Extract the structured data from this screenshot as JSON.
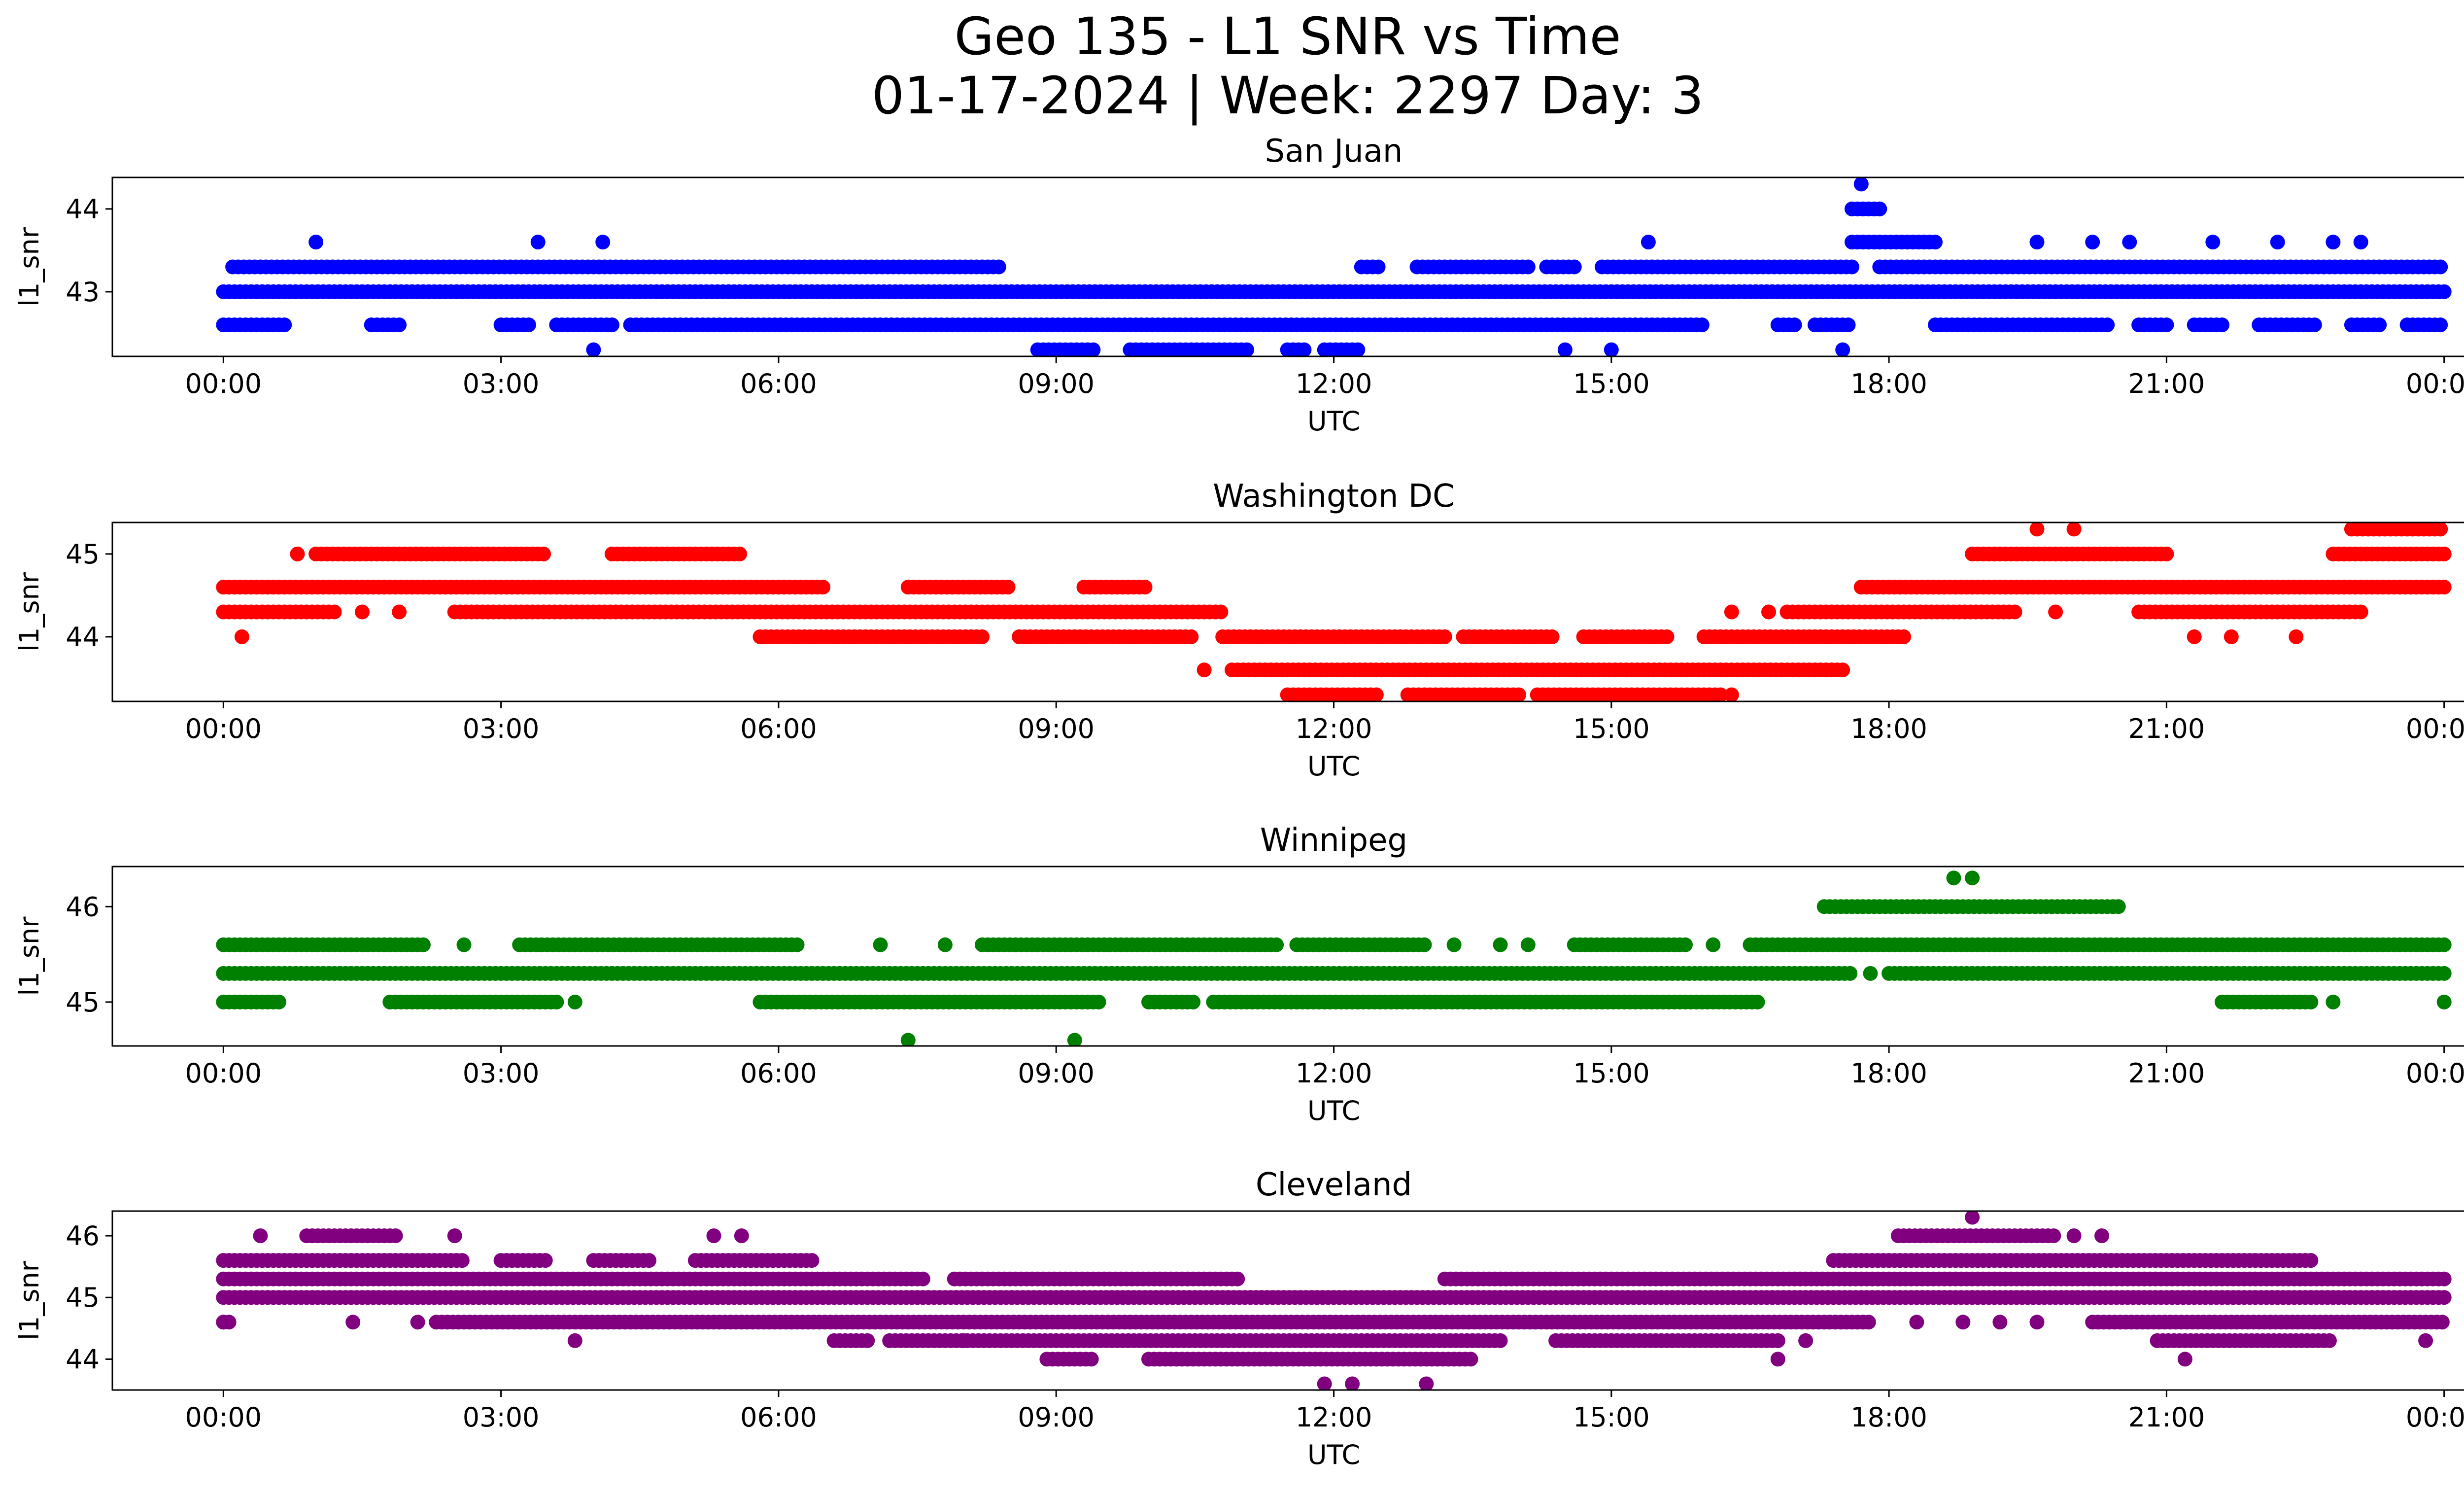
{
  "figure": {
    "title_line1": "Geo 135 - L1 SNR vs Time",
    "title_line2": "01-17-2024 | Week: 2297 Day: 3"
  },
  "chart_data": [
    {
      "type": "scatter",
      "title": "San Juan",
      "xlabel": "UTC",
      "ylabel": "l1_snr",
      "color": "#0000ff",
      "x_ticks": [
        "00:00",
        "03:00",
        "06:00",
        "09:00",
        "12:00",
        "15:00",
        "18:00",
        "21:00",
        "00:00"
      ],
      "x_unit": "hours UTC",
      "xlim": [
        -1.2,
        25.2
      ],
      "ylim": [
        42.22,
        44.38
      ],
      "y_ticks": [
        43,
        44
      ],
      "series": [
        {
          "y": 43.0,
          "ranges": [
            [
              0,
              24
            ]
          ]
        },
        {
          "y": 42.6,
          "ranges": [
            [
              0,
              0.7
            ],
            [
              1.6,
              1.9
            ],
            [
              3.0,
              3.3
            ],
            [
              3.6,
              4.2
            ],
            [
              4.4,
              16.0
            ],
            [
              16.8,
              17.0
            ],
            [
              17.2,
              17.6
            ],
            [
              18.5,
              20.4
            ],
            [
              20.7,
              21.0
            ],
            [
              21.3,
              21.6
            ],
            [
              22.0,
              22.6
            ],
            [
              23.0,
              23.3
            ],
            [
              23.6,
              24.0
            ]
          ]
        },
        {
          "y": 43.3,
          "ranges": [
            [
              0.1,
              8.4
            ],
            [
              12.3,
              12.5
            ],
            [
              12.9,
              14.1
            ],
            [
              14.3,
              14.6
            ],
            [
              14.9,
              17.6
            ],
            [
              17.9,
              24.0
            ]
          ]
        },
        {
          "y": 43.6,
          "ranges": [
            [
              17.6,
              18.5
            ]
          ]
        },
        {
          "y": 44.0,
          "ranges": [
            [
              17.6,
              17.9
            ]
          ]
        },
        {
          "y": 42.3,
          "ranges": [
            [
              8.8,
              9.4
            ],
            [
              9.8,
              11.1
            ],
            [
              11.5,
              11.7
            ],
            [
              11.9,
              12.3
            ]
          ]
        }
      ],
      "points": [
        {
          "x": 1.0,
          "y": 43.6
        },
        {
          "x": 3.4,
          "y": 43.6
        },
        {
          "x": 4.1,
          "y": 43.6
        },
        {
          "x": 4.0,
          "y": 42.3
        },
        {
          "x": 15.4,
          "y": 43.6
        },
        {
          "x": 14.5,
          "y": 42.3
        },
        {
          "x": 15.0,
          "y": 42.3
        },
        {
          "x": 17.5,
          "y": 42.3
        },
        {
          "x": 17.7,
          "y": 44.3
        },
        {
          "x": 19.6,
          "y": 43.6
        },
        {
          "x": 20.2,
          "y": 43.6
        },
        {
          "x": 20.6,
          "y": 43.6
        },
        {
          "x": 21.5,
          "y": 43.6
        },
        {
          "x": 22.2,
          "y": 43.6
        },
        {
          "x": 22.8,
          "y": 43.6
        },
        {
          "x": 23.1,
          "y": 43.6
        }
      ]
    },
    {
      "type": "scatter",
      "title": "Washington DC",
      "xlabel": "UTC",
      "ylabel": "l1_snr",
      "color": "#ff0000",
      "x_ticks": [
        "00:00",
        "03:00",
        "06:00",
        "09:00",
        "12:00",
        "15:00",
        "18:00",
        "21:00",
        "00:00"
      ],
      "x_unit": "hours UTC",
      "xlim": [
        -1.2,
        25.2
      ],
      "ylim": [
        43.22,
        45.38
      ],
      "y_ticks": [
        44,
        45
      ],
      "series": [
        {
          "y": 44.6,
          "ranges": [
            [
              0,
              6.5
            ],
            [
              7.4,
              8.5
            ],
            [
              9.3,
              10.0
            ],
            [
              17.7,
              24.0
            ]
          ]
        },
        {
          "y": 44.3,
          "ranges": [
            [
              0,
              1.2
            ],
            [
              2.5,
              10.8
            ],
            [
              16.9,
              19.4
            ],
            [
              20.7,
              23.1
            ]
          ]
        },
        {
          "y": 44.0,
          "ranges": [
            [
              5.8,
              8.2
            ],
            [
              8.6,
              10.5
            ],
            [
              10.8,
              13.2
            ],
            [
              13.4,
              14.4
            ],
            [
              14.7,
              15.6
            ],
            [
              16.0,
              18.2
            ]
          ]
        },
        {
          "y": 43.6,
          "ranges": [
            [
              10.9,
              17.5
            ]
          ]
        },
        {
          "y": 45.0,
          "ranges": [
            [
              1.0,
              3.5
            ],
            [
              4.2,
              5.6
            ],
            [
              18.9,
              21.0
            ],
            [
              22.8,
              24.0
            ]
          ]
        },
        {
          "y": 43.3,
          "ranges": [
            [
              11.5,
              12.5
            ],
            [
              12.8,
              14.0
            ],
            [
              14.2,
              16.2
            ]
          ]
        },
        {
          "y": 45.3,
          "ranges": [
            [
              23.0,
              24.0
            ]
          ]
        }
      ],
      "points": [
        {
          "x": 0.2,
          "y": 44.0
        },
        {
          "x": 0.8,
          "y": 45.0
        },
        {
          "x": 1.5,
          "y": 44.3
        },
        {
          "x": 1.9,
          "y": 44.3
        },
        {
          "x": 10.6,
          "y": 43.6
        },
        {
          "x": 16.3,
          "y": 44.3
        },
        {
          "x": 16.7,
          "y": 44.3
        },
        {
          "x": 16.3,
          "y": 43.3
        },
        {
          "x": 19.6,
          "y": 45.3
        },
        {
          "x": 20.0,
          "y": 45.3
        },
        {
          "x": 19.8,
          "y": 44.3
        },
        {
          "x": 21.3,
          "y": 44.0
        },
        {
          "x": 21.7,
          "y": 44.0
        },
        {
          "x": 22.4,
          "y": 44.0
        }
      ]
    },
    {
      "type": "scatter",
      "title": "Winnipeg",
      "xlabel": "UTC",
      "ylabel": "l1_snr",
      "color": "#008000",
      "x_ticks": [
        "00:00",
        "03:00",
        "06:00",
        "09:00",
        "12:00",
        "15:00",
        "18:00",
        "21:00",
        "00:00"
      ],
      "x_unit": "hours UTC",
      "xlim": [
        -1.2,
        25.2
      ],
      "ylim": [
        44.54,
        46.42
      ],
      "y_ticks": [
        45,
        46
      ],
      "series": [
        {
          "y": 45.3,
          "ranges": [
            [
              0,
              17.6
            ],
            [
              18.0,
              24.0
            ]
          ]
        },
        {
          "y": 45.6,
          "ranges": [
            [
              0,
              2.2
            ],
            [
              3.2,
              6.2
            ],
            [
              8.2,
              11.4
            ],
            [
              11.6,
              13.0
            ],
            [
              14.6,
              15.8
            ],
            [
              16.5,
              24.0
            ]
          ]
        },
        {
          "y": 45.0,
          "ranges": [
            [
              0,
              0.6
            ],
            [
              1.8,
              3.6
            ],
            [
              5.8,
              9.5
            ],
            [
              10.0,
              10.5
            ],
            [
              10.7,
              16.6
            ],
            [
              21.6,
              22.6
            ]
          ]
        },
        {
          "y": 46.0,
          "ranges": [
            [
              17.3,
              20.5
            ]
          ]
        }
      ],
      "points": [
        {
          "x": 2.6,
          "y": 45.6
        },
        {
          "x": 3.8,
          "y": 45.0
        },
        {
          "x": 7.1,
          "y": 45.6
        },
        {
          "x": 7.8,
          "y": 45.6
        },
        {
          "x": 13.3,
          "y": 45.6
        },
        {
          "x": 13.8,
          "y": 45.6
        },
        {
          "x": 14.1,
          "y": 45.6
        },
        {
          "x": 16.1,
          "y": 45.6
        },
        {
          "x": 7.4,
          "y": 44.6
        },
        {
          "x": 9.2,
          "y": 44.6
        },
        {
          "x": 18.7,
          "y": 46.3
        },
        {
          "x": 18.9,
          "y": 46.3
        },
        {
          "x": 17.8,
          "y": 45.3
        },
        {
          "x": 19.2,
          "y": 45.3
        },
        {
          "x": 24.0,
          "y": 45.0
        },
        {
          "x": 22.8,
          "y": 45.0
        }
      ]
    },
    {
      "type": "scatter",
      "title": "Cleveland",
      "xlabel": "UTC",
      "ylabel": "l1_snr",
      "color": "#800080",
      "x_ticks": [
        "00:00",
        "03:00",
        "06:00",
        "09:00",
        "12:00",
        "15:00",
        "18:00",
        "21:00",
        "00:00"
      ],
      "x_unit": "hours UTC",
      "xlim": [
        -1.2,
        25.2
      ],
      "ylim": [
        43.5,
        46.4
      ],
      "y_ticks": [
        44,
        45,
        46
      ],
      "series": [
        {
          "y": 45.0,
          "ranges": [
            [
              0,
              24
            ]
          ]
        },
        {
          "y": 44.6,
          "ranges": [
            [
              0,
              0.1
            ],
            [
              2.3,
              17.8
            ],
            [
              20.2,
              24.0
            ]
          ]
        },
        {
          "y": 45.3,
          "ranges": [
            [
              0,
              7.6
            ],
            [
              7.9,
              11.0
            ],
            [
              13.2,
              24.0
            ]
          ]
        },
        {
          "y": 45.6,
          "ranges": [
            [
              0,
              2.6
            ],
            [
              3.0,
              3.5
            ],
            [
              4.0,
              4.6
            ],
            [
              5.1,
              6.4
            ],
            [
              17.4,
              22.6
            ]
          ]
        },
        {
          "y": 44.3,
          "ranges": [
            [
              6.6,
              7.0
            ],
            [
              7.2,
              13.8
            ],
            [
              14.4,
              16.8
            ],
            [
              20.9,
              22.8
            ]
          ]
        },
        {
          "y": 46.0,
          "ranges": [
            [
              0.9,
              1.9
            ],
            [
              18.1,
              19.8
            ]
          ]
        },
        {
          "y": 44.0,
          "ranges": [
            [
              8.9,
              9.4
            ],
            [
              10.0,
              13.5
            ]
          ]
        }
      ],
      "points": [
        {
          "x": 0.0,
          "y": 44.6
        },
        {
          "x": 0.4,
          "y": 46.0
        },
        {
          "x": 2.5,
          "y": 46.0
        },
        {
          "x": 1.4,
          "y": 44.6
        },
        {
          "x": 2.1,
          "y": 44.6
        },
        {
          "x": 3.8,
          "y": 44.3
        },
        {
          "x": 5.3,
          "y": 46.0
        },
        {
          "x": 5.6,
          "y": 46.0
        },
        {
          "x": 8.0,
          "y": 44.3
        },
        {
          "x": 11.9,
          "y": 43.6
        },
        {
          "x": 12.2,
          "y": 43.6
        },
        {
          "x": 13.0,
          "y": 43.6
        },
        {
          "x": 18.3,
          "y": 44.6
        },
        {
          "x": 18.8,
          "y": 44.6
        },
        {
          "x": 19.2,
          "y": 44.6
        },
        {
          "x": 19.6,
          "y": 44.6
        },
        {
          "x": 18.9,
          "y": 46.3
        },
        {
          "x": 20.0,
          "y": 46.0
        },
        {
          "x": 20.3,
          "y": 46.0
        },
        {
          "x": 21.2,
          "y": 44.0
        },
        {
          "x": 23.8,
          "y": 44.3
        },
        {
          "x": 16.8,
          "y": 44.0
        },
        {
          "x": 17.1,
          "y": 44.3
        }
      ]
    }
  ]
}
